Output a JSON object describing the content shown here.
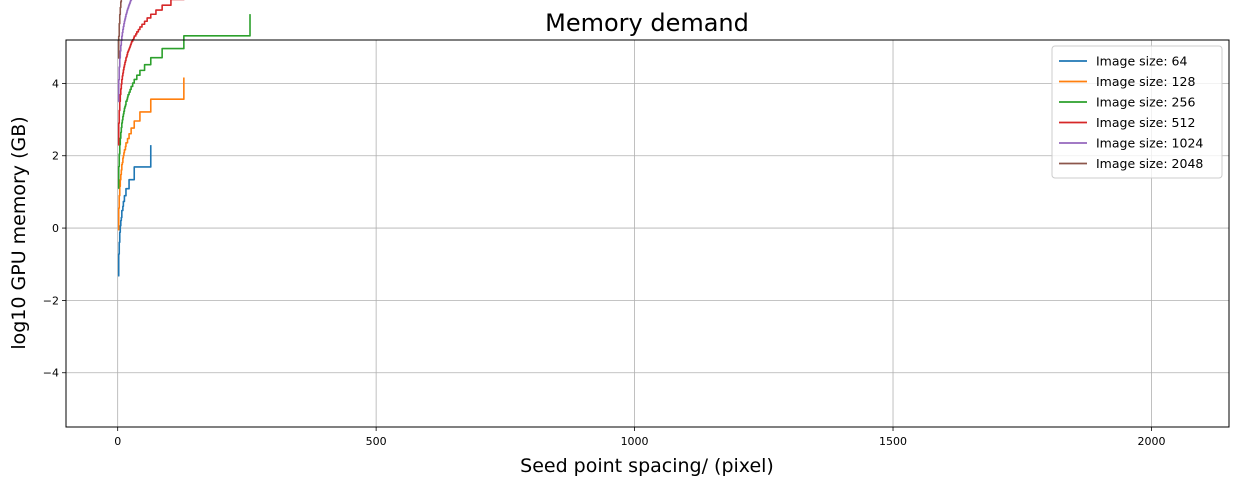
{
  "chart_data": {
    "type": "line",
    "title": "Memory demand",
    "xlabel": "Seed point spacing/  (pixel)",
    "ylabel": "log10 GPU memory (GB)",
    "xlim": [
      -100,
      2150
    ],
    "ylim": [
      -5.5,
      5.2
    ],
    "xticks": [
      0,
      500,
      1000,
      1500,
      2000
    ],
    "yticks": [
      -4,
      -2,
      0,
      2,
      4
    ],
    "grid": true,
    "legend_position": "top-right",
    "series": [
      {
        "name": "Image size: 64",
        "color": "#1f77b4",
        "N": 64,
        "start": -1.32
      },
      {
        "name": "Image size: 128",
        "color": "#ff7f0e",
        "N": 128,
        "start": -0.05
      },
      {
        "name": "Image size: 256",
        "color": "#2ca02c",
        "N": 256,
        "start": 1.1
      },
      {
        "name": "Image size: 512",
        "color": "#d62728",
        "N": 512,
        "start": 2.3
      },
      {
        "name": "Image size: 1024",
        "color": "#9467bd",
        "N": 1024,
        "start": 3.5
      },
      {
        "name": "Image size: 2048",
        "color": "#8c564b",
        "N": 2048,
        "start": 4.7
      }
    ]
  }
}
